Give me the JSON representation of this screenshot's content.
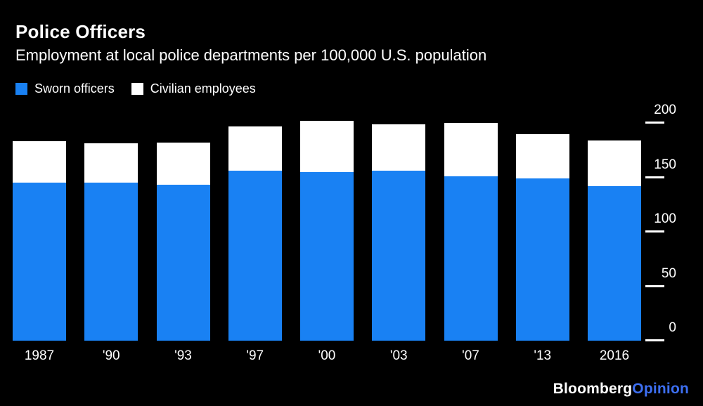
{
  "header": {
    "title": "Police Officers",
    "subtitle": "Employment at local police departments per 100,000 U.S. population"
  },
  "legend": [
    {
      "label": "Sworn officers",
      "color": "#1981f3"
    },
    {
      "label": "Civilian employees",
      "color": "#ffffff"
    }
  ],
  "chart_data": {
    "type": "bar",
    "stacked": true,
    "title": "Police Officers",
    "subtitle": "Employment at local police departments per 100,000 U.S. population",
    "categories": [
      "1987",
      "'90",
      "'93",
      "'97",
      "'00",
      "'03",
      "'07",
      "'13",
      "2016"
    ],
    "series": [
      {
        "name": "Sworn officers",
        "color": "#1981f3",
        "values": [
          145,
          145,
          143,
          156,
          155,
          156,
          151,
          149,
          142
        ]
      },
      {
        "name": "Civilian employees",
        "color": "#ffffff",
        "values": [
          38,
          36,
          39,
          41,
          47,
          43,
          49,
          41,
          42
        ]
      }
    ],
    "xlabel": "",
    "ylabel": "",
    "ylim": [
      0,
      200
    ],
    "yticks": [
      0,
      50,
      100,
      150,
      200
    ],
    "yaxis_side": "right",
    "grid": false,
    "legend_position": "top-left",
    "background": "#000000"
  },
  "branding": {
    "bloomberg": "Bloomberg",
    "opinion": "Opinion",
    "opinion_color": "#3d6ff2"
  },
  "colors": {
    "background": "#000000",
    "text": "#ffffff",
    "bar_blue": "#1981f3",
    "bar_white": "#ffffff"
  }
}
